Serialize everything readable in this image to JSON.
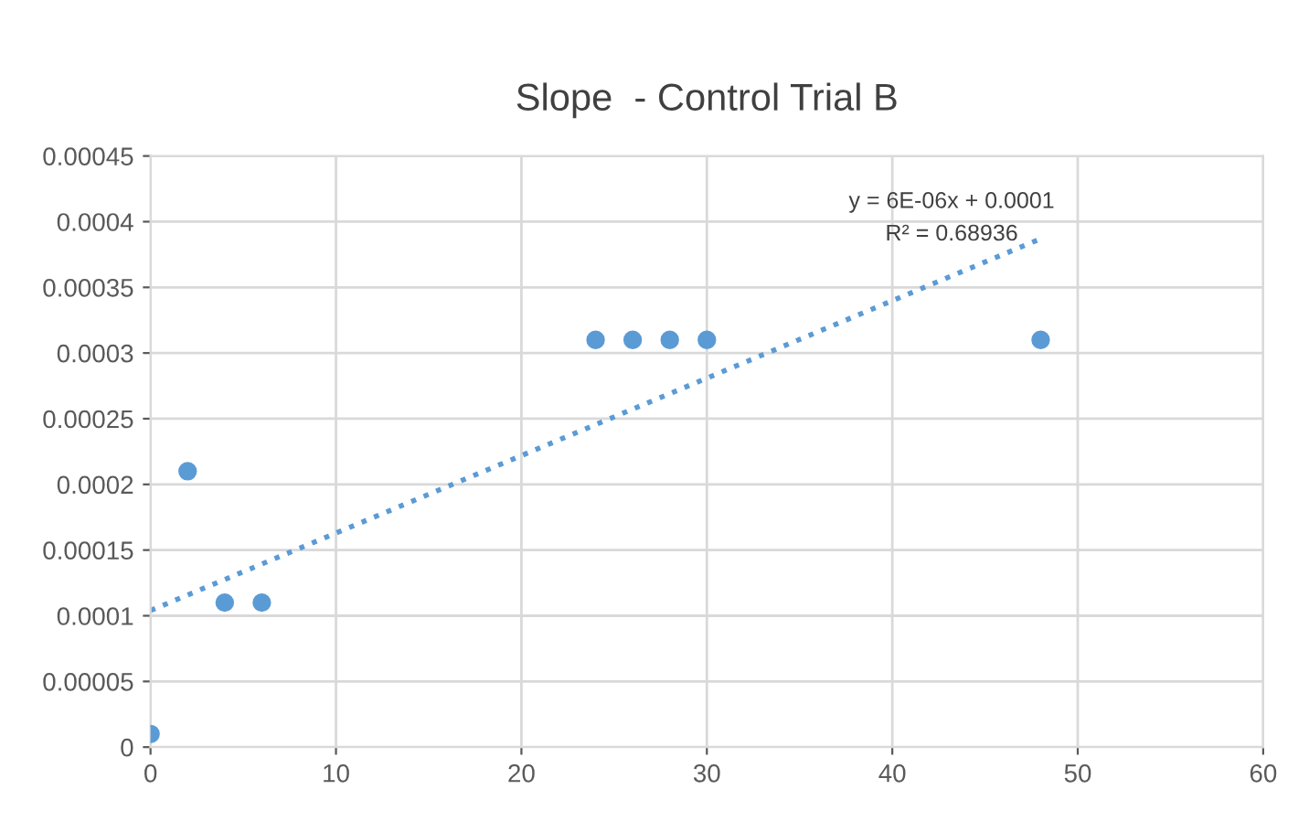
{
  "chart_data": {
    "type": "scatter",
    "title": "Slope  - Control Trial B",
    "series": [
      {
        "color": "#5b9bd5",
        "marker": "circle",
        "x": [
          0,
          2,
          4,
          6,
          24,
          26,
          28,
          30,
          48
        ],
        "values": [
          1e-05,
          0.00021,
          0.00011,
          0.00011,
          0.00031,
          0.00031,
          0.00031,
          0.00031,
          0.00031
        ]
      },
      {
        "type": "line",
        "color": "#5b9bd5",
        "line_style": "dotted",
        "marker": "none",
        "x": [
          0,
          48
        ],
        "values": [
          0.000104,
          0.000387
        ]
      }
    ],
    "xlim": [
      0,
      60
    ],
    "xticks": [
      0,
      10,
      20,
      30,
      40,
      50,
      60
    ],
    "ylim": [
      0,
      0.00045
    ],
    "yticks": [
      {
        "value": 0,
        "label": "0"
      },
      {
        "value": 5e-05,
        "label": "0.00005"
      },
      {
        "value": 0.0001,
        "label": "0.0001"
      },
      {
        "value": 0.00015,
        "label": "0.00015"
      },
      {
        "value": 0.0002,
        "label": "0.0002"
      },
      {
        "value": 0.00025,
        "label": "0.00025"
      },
      {
        "value": 0.0003,
        "label": "0.0003"
      },
      {
        "value": 0.00035,
        "label": "0.00035"
      },
      {
        "value": 0.0004,
        "label": "0.0004"
      },
      {
        "value": 0.00045,
        "label": "0.00045"
      }
    ],
    "grid": true,
    "annotations": [
      "y = 6E-06x + 0.0001",
      "R² = 0.68936"
    ]
  }
}
